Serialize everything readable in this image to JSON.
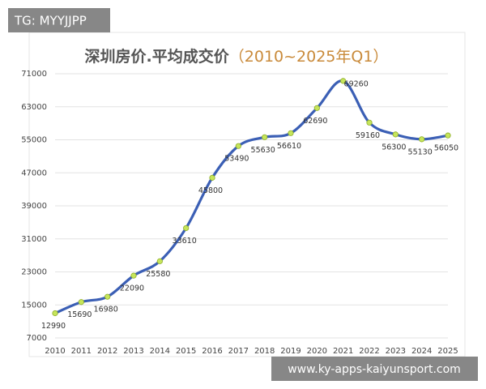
{
  "chart_data": {
    "type": "line",
    "title": "深圳房价.平均成交价",
    "subtitle": "（2010~2025年Q1）",
    "categories": [
      "2010",
      "2011",
      "2012",
      "2013",
      "2014",
      "2015",
      "2016",
      "2017",
      "2018",
      "2019",
      "2020",
      "2021",
      "2022",
      "2023",
      "2024",
      "2025"
    ],
    "series": [
      {
        "name": "平均成交价",
        "color": "#3b5fb5",
        "values": [
          12990,
          15690,
          16980,
          22090,
          25580,
          33610,
          45800,
          53490,
          55630,
          56610,
          62690,
          69260,
          59160,
          56300,
          55130,
          56050
        ]
      }
    ],
    "ylim": [
      7000,
      71000
    ],
    "yticks": [
      7000,
      15000,
      23000,
      31000,
      39000,
      47000,
      55000,
      63000,
      71000
    ],
    "grid": true,
    "marker_color": "#c6e55b"
  },
  "overlays": {
    "top_left": "TG: MYYJJPP",
    "bottom_right": "www.ky-apps-kaiyunsport.com"
  }
}
